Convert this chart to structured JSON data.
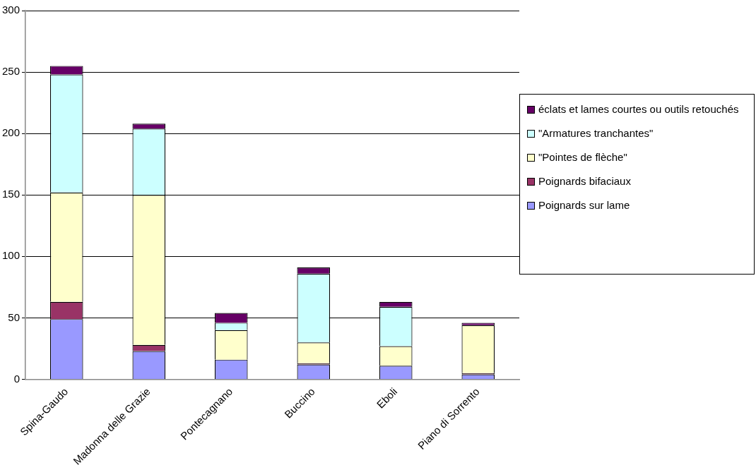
{
  "chart_data": {
    "type": "bar",
    "stacked": true,
    "categories": [
      "Spina-Gaudo",
      "Madonna delle Grazie",
      "Pontecagnano",
      "Buccino",
      "Eboli",
      "Piano di Sorrento"
    ],
    "series": [
      {
        "name": "Poignards sur lame",
        "color": "#9999ff",
        "values": [
          49,
          23,
          16,
          12,
          11,
          4
        ]
      },
      {
        "name": "Poignards bifaciaux",
        "color": "#993366",
        "values": [
          14,
          5,
          0,
          1,
          0,
          1
        ]
      },
      {
        "name": "\"Pointes de flèche\"",
        "color": "#ffffcc",
        "values": [
          89,
          122,
          24,
          17,
          16,
          39
        ]
      },
      {
        "name": "\"Armatures tranchantes\"",
        "color": "#ccffff",
        "values": [
          96,
          54,
          6,
          56,
          32,
          0
        ]
      },
      {
        "name": "éclats et lames courtes ou outils retouchés",
        "color": "#660066",
        "values": [
          7,
          4,
          8,
          5,
          4,
          2
        ]
      }
    ],
    "ylim": [
      0,
      300
    ],
    "yticks": [
      0,
      50,
      100,
      150,
      200,
      250,
      300
    ],
    "grid": "y",
    "legend": "right"
  }
}
